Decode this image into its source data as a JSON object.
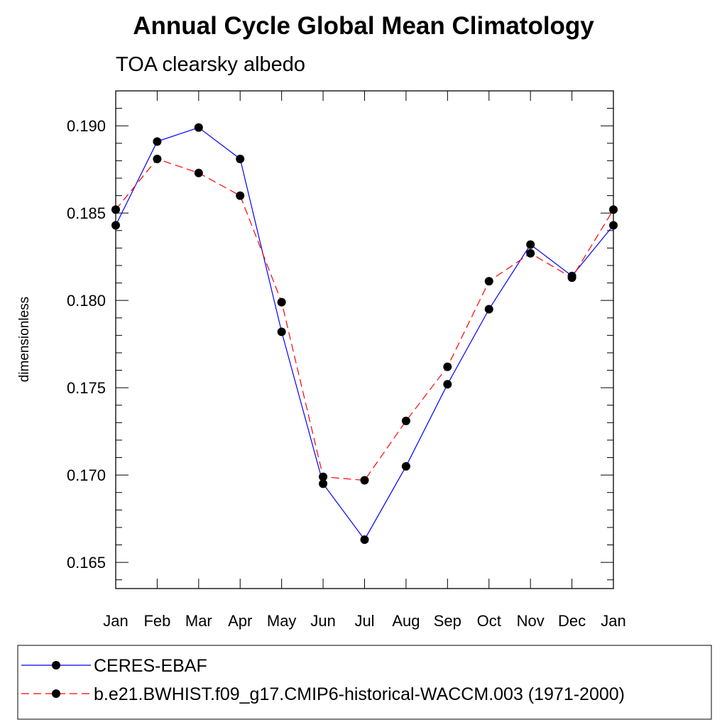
{
  "chart_data": {
    "type": "line",
    "title": "Annual Cycle Global Mean Climatology",
    "subtitle": "TOA clearsky albedo",
    "ylabel": "dimensionless",
    "xlabel": "",
    "categories": [
      "Jan",
      "Feb",
      "Mar",
      "Apr",
      "May",
      "Jun",
      "Jul",
      "Aug",
      "Sep",
      "Oct",
      "Nov",
      "Dec",
      "Jan"
    ],
    "ylim": [
      0.1635,
      0.192
    ],
    "yticks": [
      0.165,
      0.17,
      0.175,
      0.18,
      0.185,
      0.19
    ],
    "ytick_labels": [
      "0.165",
      "0.170",
      "0.175",
      "0.180",
      "0.185",
      "0.190"
    ],
    "grid": false,
    "legend_position": "bottom",
    "series": [
      {
        "name": "CERES-EBAF",
        "color": "#0000ff",
        "dash": "solid",
        "marker": "circle",
        "values": [
          0.1843,
          0.1891,
          0.1899,
          0.1881,
          0.1782,
          0.1695,
          0.1663,
          0.1705,
          0.1752,
          0.1795,
          0.1832,
          0.1814,
          0.1843
        ]
      },
      {
        "name": "b.e21.BWHIST.f09_g17.CMIP6-historical-WACCM.003 (1971-2000)",
        "color": "#ff0000",
        "dash": "dashed",
        "marker": "circle",
        "values": [
          0.1852,
          0.1881,
          0.1873,
          0.186,
          0.1799,
          0.1699,
          0.1697,
          0.1731,
          0.1762,
          0.1811,
          0.1827,
          0.1813,
          0.1852
        ]
      }
    ]
  }
}
